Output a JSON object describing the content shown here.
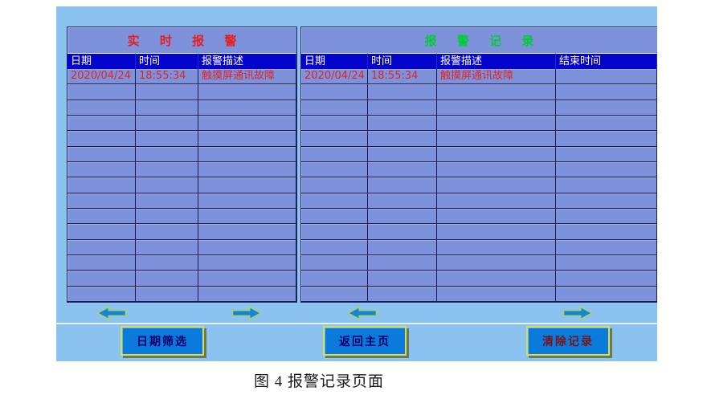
{
  "realtime_table": {
    "title": "实 时 报 警",
    "columns": [
      "日期",
      "时间",
      "报警描述"
    ],
    "rows": [
      [
        "2020/04/24",
        "18:55:34",
        "触摸屏通讯故障"
      ]
    ],
    "visible_row_count": 15
  },
  "history_table": {
    "title": "报 警 记 录",
    "columns": [
      "日期",
      "时间",
      "报警描述",
      "结束时间"
    ],
    "rows": [
      [
        "2020/04/24",
        "18:55:34",
        "触摸屏通讯故障",
        ""
      ]
    ],
    "visible_row_count": 15
  },
  "nav": {
    "arrows": [
      {
        "id": "realtime-scroll-left",
        "icon": "arrow-left-icon"
      },
      {
        "id": "realtime-scroll-right",
        "icon": "arrow-right-icon"
      },
      {
        "id": "history-scroll-left",
        "icon": "arrow-left-icon"
      },
      {
        "id": "history-scroll-right",
        "icon": "arrow-right-icon"
      }
    ]
  },
  "buttons": {
    "date_filter": "日期筛选",
    "back_home": "返回主页",
    "clear_records": "清除记录"
  },
  "caption": "图 4 报警记录页面",
  "colors": {
    "panel_background": "#8CC2F0",
    "table_background": "#7E92DC",
    "header_background": "#0404CC",
    "header_text": "#FFFFFF",
    "alarm_text": "#E02424",
    "realtime_title": "#E51E1E",
    "history_title": "#00CC33",
    "grid_line": "#1B1B52",
    "arrow_fill": "#1585DC",
    "arrow_outline": "#AAD35C",
    "button_background": "#0A7ADC",
    "button_border": "#D6DE5A",
    "button_text_navy": "#00006A",
    "button_text_dark_red": "#7A1414"
  }
}
